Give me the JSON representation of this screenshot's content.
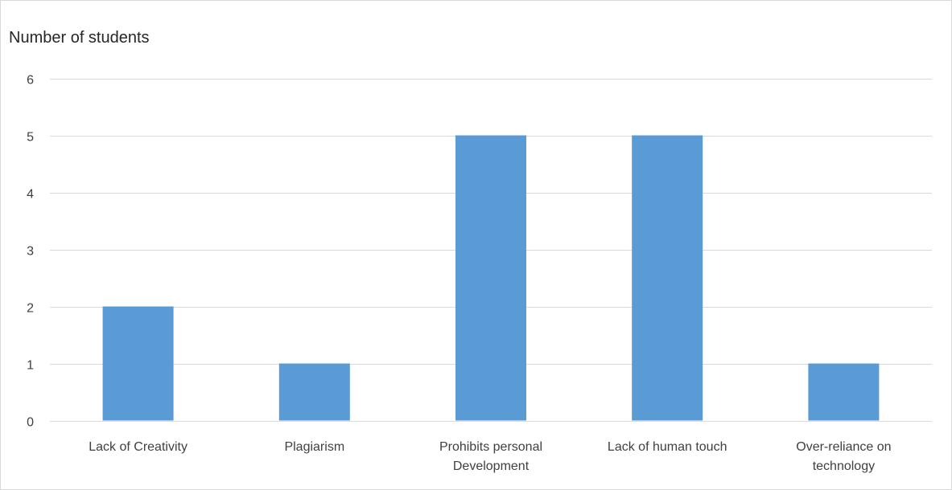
{
  "chart_data": {
    "type": "bar",
    "title": "",
    "xlabel": "",
    "ylabel": "Number of students",
    "categories": [
      "Lack of Creativity",
      "Plagiarism",
      "Prohibits personal Development",
      "Lack of human touch",
      "Over-reliance on technology"
    ],
    "category_lines": [
      [
        "Lack of Creativity"
      ],
      [
        "Plagiarism"
      ],
      [
        "Prohibits personal",
        "Development"
      ],
      [
        "Lack of human touch"
      ],
      [
        "Over-reliance on",
        "technology"
      ]
    ],
    "values": [
      2,
      1,
      5,
      5,
      1
    ],
    "ylim": [
      0,
      6
    ],
    "yticks": [
      "0",
      "1",
      "2",
      "3",
      "4",
      "5",
      "6"
    ],
    "grid": true,
    "legend": "none",
    "bar_color": "#5b9bd5",
    "grid_color": "#d9d9d9"
  }
}
